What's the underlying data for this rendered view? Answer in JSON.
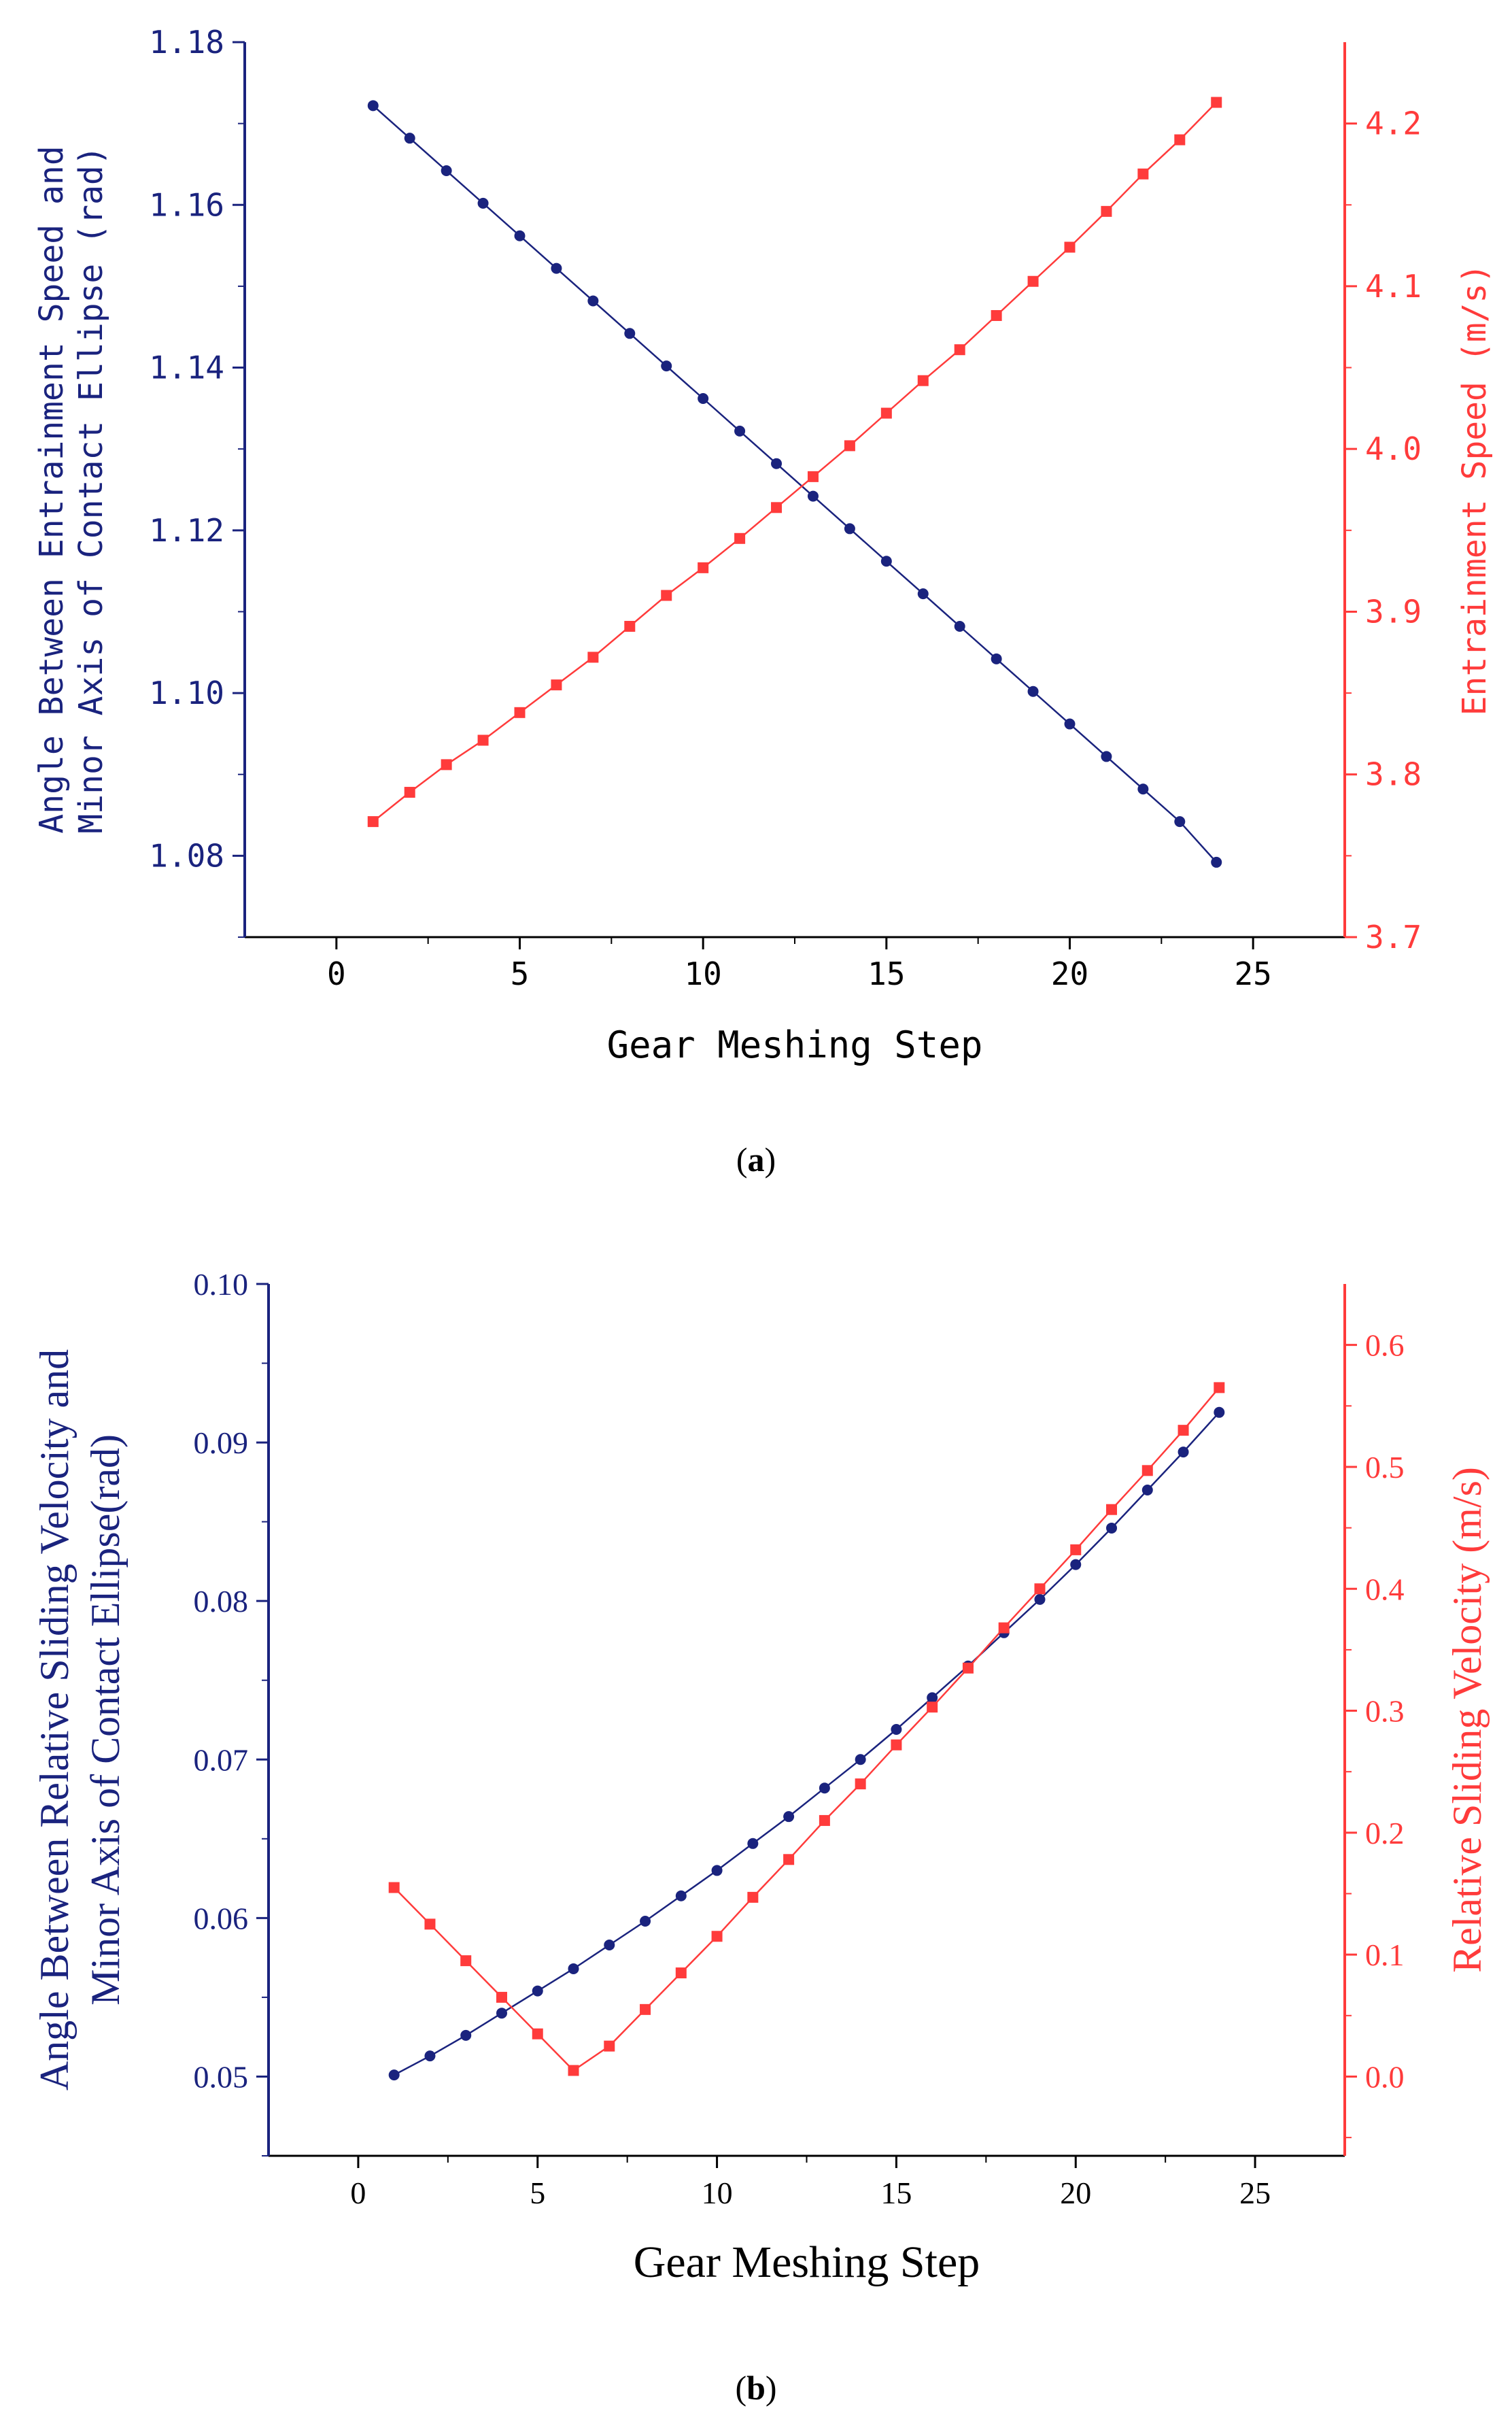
{
  "colors": {
    "left": "#1a237e",
    "right": "#ff3b3b",
    "frame": "#000000"
  },
  "panels": [
    {
      "caption": {
        "open": "(",
        "letter": "a",
        "close": ")"
      },
      "chart_data": {
        "type": "line",
        "x": [
          1,
          2,
          3,
          4,
          5,
          6,
          7,
          8,
          9,
          10,
          11,
          12,
          13,
          14,
          15,
          16,
          17,
          18,
          19,
          20,
          21,
          22,
          23,
          24
        ],
        "xlim": [
          -2.5,
          27.5
        ],
        "xticks": [
          "0",
          "5",
          "10",
          "15",
          "20",
          "25"
        ],
        "xlabel": "Gear Meshing Step",
        "left_axis": {
          "label_lines": [
            "Angle Between Entrainment Speed and",
            "Minor Axis of Contact Ellipse (rad)"
          ],
          "ylim": [
            1.07,
            1.18
          ],
          "ticks": [
            "1.08",
            "1.10",
            "1.12",
            "1.14",
            "1.16",
            "1.18"
          ]
        },
        "right_axis": {
          "label": "Entrainment Speed (m/s)",
          "ylim": [
            3.7,
            4.25
          ],
          "ticks": [
            "3.7",
            "3.8",
            "3.9",
            "4.0",
            "4.1",
            "4.2"
          ]
        },
        "series": [
          {
            "name": "Angle Between Entrainment Speed and Minor Axis of Contact Ellipse",
            "axis": "left",
            "marker": "circle",
            "color": "#1a237e",
            "values": [
              1.1722,
              1.1682,
              1.1642,
              1.1602,
              1.1562,
              1.1522,
              1.1482,
              1.1442,
              1.1402,
              1.1362,
              1.1322,
              1.1282,
              1.1242,
              1.1202,
              1.1162,
              1.1122,
              1.1082,
              1.1042,
              1.1002,
              1.0962,
              1.0922,
              1.0882,
              1.0842,
              1.0792
            ]
          },
          {
            "name": "Entrainment Speed",
            "axis": "right",
            "marker": "square",
            "color": "#ff3b3b",
            "values": [
              3.771,
              3.789,
              3.806,
              3.821,
              3.838,
              3.855,
              3.872,
              3.891,
              3.91,
              3.927,
              3.945,
              3.964,
              3.983,
              4.002,
              4.022,
              4.042,
              4.061,
              4.082,
              4.103,
              4.124,
              4.146,
              4.169,
              4.19,
              4.213
            ]
          }
        ]
      }
    },
    {
      "caption": {
        "open": "(",
        "letter": "b",
        "close": ")"
      },
      "chart_data": {
        "type": "line",
        "x": [
          1,
          2,
          3,
          4,
          5,
          6,
          7,
          8,
          9,
          10,
          11,
          12,
          13,
          14,
          15,
          16,
          17,
          18,
          19,
          20,
          21,
          22,
          23,
          24
        ],
        "xlim": [
          -2.5,
          27.5
        ],
        "xticks": [
          "0",
          "5",
          "10",
          "15",
          "20",
          "25"
        ],
        "xlabel": "Gear Meshing Step",
        "left_axis": {
          "label_lines": [
            "Angle Between Relative Sliding  Velocity and",
            "Minor Axis of Contact Ellipse(rad)"
          ],
          "ylim": [
            0.045,
            0.1
          ],
          "ticks": [
            "0.05",
            "0.06",
            "0.07",
            "0.08",
            "0.09",
            "0.10"
          ]
        },
        "right_axis": {
          "label": "Relative Sliding  Velocity (m/s)",
          "ylim": [
            -0.065,
            0.65
          ],
          "ticks": [
            "0.0",
            "0.1",
            "0.2",
            "0.3",
            "0.4",
            "0.5",
            "0.6"
          ]
        },
        "series": [
          {
            "name": "Angle Between Relative Sliding Velocity and Minor Axis of Contact Ellipse",
            "axis": "left",
            "marker": "circle",
            "color": "#1a237e",
            "values": [
              0.0501,
              0.0513,
              0.0526,
              0.054,
              0.0554,
              0.0568,
              0.0583,
              0.0598,
              0.0614,
              0.063,
              0.0647,
              0.0664,
              0.0682,
              0.07,
              0.0719,
              0.0739,
              0.0759,
              0.078,
              0.0801,
              0.0823,
              0.0846,
              0.087,
              0.0894,
              0.0919
            ]
          },
          {
            "name": "Relative Sliding Velocity",
            "axis": "right",
            "marker": "square",
            "color": "#ff3b3b",
            "values": [
              0.155,
              0.125,
              0.095,
              0.065,
              0.035,
              0.005,
              0.025,
              0.055,
              0.085,
              0.115,
              0.147,
              0.178,
              0.21,
              0.24,
              0.272,
              0.303,
              0.335,
              0.368,
              0.4,
              0.432,
              0.465,
              0.497,
              0.53,
              0.565
            ]
          }
        ]
      }
    }
  ]
}
